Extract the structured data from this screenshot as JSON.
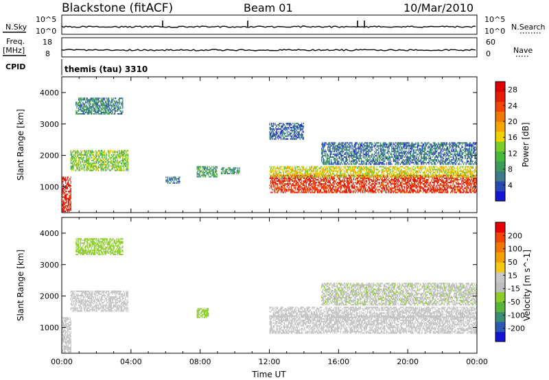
{
  "header": {
    "station": "Blackstone (fitACF)",
    "beam": "Beam 01",
    "date": "10/Mar/2010"
  },
  "nsky_panel": {
    "left_label": "N.Sky",
    "left_ticks": [
      "10^5",
      "10^0"
    ],
    "right_label": "N.Search",
    "right_ticks": [
      "10^5",
      "10^0"
    ]
  },
  "freq_panel": {
    "left_label_1": "Freq.",
    "left_label_2": "[MHz]",
    "left_ticks": [
      "18",
      "8"
    ],
    "right_label": "Nave",
    "right_ticks": [
      "60",
      "0"
    ]
  },
  "cpid": {
    "label": "CPID",
    "program": "themis (tau) 3310"
  },
  "colors": {
    "power_scale": [
      "#1414d2",
      "#2848b4",
      "#3c7a8c",
      "#3c9c5a",
      "#46b83c",
      "#7ccd28",
      "#f0d200",
      "#f5a500",
      "#f07800",
      "#f04600",
      "#e61e00",
      "#dc0000"
    ],
    "velocity_scale": [
      "#1414d2",
      "#2a5ab4",
      "#3c8c78",
      "#5ab43c",
      "#8ccd28",
      "#bebebe",
      "#c8c8c8",
      "#f5c814",
      "#f5a000",
      "#f07800",
      "#f04600",
      "#e60000"
    ],
    "ground_scatter": "#c0c0c0"
  },
  "chart_data": [
    {
      "type": "heatmap",
      "title": "",
      "xlabel": "Time UT",
      "ylabel": "Slant Range [km]",
      "x_ticks": [
        "00:00",
        "04:00",
        "08:00",
        "12:00",
        "16:00",
        "20:00",
        "00:00"
      ],
      "x_range_hours": [
        0,
        24
      ],
      "y_ticks": [
        1000,
        2000,
        3000,
        4000
      ],
      "ylim": [
        180,
        4500
      ],
      "colorbar": {
        "label": "Power [dB]",
        "ticks": [
          4,
          8,
          12,
          16,
          20,
          24,
          28
        ],
        "range": [
          0,
          30
        ]
      },
      "echo_regions": [
        {
          "t": [
            0.0,
            0.5
          ],
          "r": [
            200,
            1300
          ],
          "level": 27
        },
        {
          "t": [
            0.5,
            3.8
          ],
          "r": [
            1500,
            2150
          ],
          "level": 13
        },
        {
          "t": [
            0.8,
            3.5
          ],
          "r": [
            3300,
            3800
          ],
          "level": 7
        },
        {
          "t": [
            6.0,
            6.8
          ],
          "r": [
            1100,
            1300
          ],
          "level": 6
        },
        {
          "t": [
            7.8,
            9.0
          ],
          "r": [
            1300,
            1650
          ],
          "level": 9
        },
        {
          "t": [
            9.2,
            10.3
          ],
          "r": [
            1400,
            1600
          ],
          "level": 9
        },
        {
          "t": [
            12.0,
            24.0
          ],
          "r": [
            800,
            1350
          ],
          "level": 26
        },
        {
          "t": [
            12.0,
            24.0
          ],
          "r": [
            1300,
            1650
          ],
          "level": 16
        },
        {
          "t": [
            15.0,
            24.0
          ],
          "r": [
            1700,
            2400
          ],
          "level": 6
        },
        {
          "t": [
            12.0,
            14.0
          ],
          "r": [
            2500,
            3000
          ],
          "level": 5
        }
      ]
    },
    {
      "type": "heatmap",
      "title": "",
      "xlabel": "Time UT",
      "ylabel": "Slant Range [km]",
      "x_ticks": [
        "00:00",
        "04:00",
        "08:00",
        "12:00",
        "16:00",
        "20:00",
        "00:00"
      ],
      "x_range_hours": [
        0,
        24
      ],
      "y_ticks": [
        1000,
        2000,
        3000,
        4000
      ],
      "ylim": [
        180,
        4500
      ],
      "colorbar": {
        "label": "Velocity [m s^-1]",
        "ticks": [
          200,
          100,
          50,
          15,
          -15,
          -50,
          -100,
          -200
        ],
        "range": [
          -250,
          250
        ]
      },
      "echo_regions": [
        {
          "t": [
            0.0,
            0.5
          ],
          "r": [
            200,
            1300
          ],
          "level": 0
        },
        {
          "t": [
            0.5,
            3.8
          ],
          "r": [
            1500,
            2150
          ],
          "level": 0
        },
        {
          "t": [
            0.8,
            3.5
          ],
          "r": [
            3300,
            3800
          ],
          "level": -60
        },
        {
          "t": [
            7.8,
            8.5
          ],
          "r": [
            1300,
            1600
          ],
          "level": -60
        },
        {
          "t": [
            12.0,
            24.0
          ],
          "r": [
            800,
            1350
          ],
          "level": 0
        },
        {
          "t": [
            12.0,
            24.0
          ],
          "r": [
            1300,
            1650
          ],
          "level": 0
        },
        {
          "t": [
            15.0,
            24.0
          ],
          "r": [
            1700,
            2400
          ],
          "level": -30
        }
      ]
    }
  ]
}
